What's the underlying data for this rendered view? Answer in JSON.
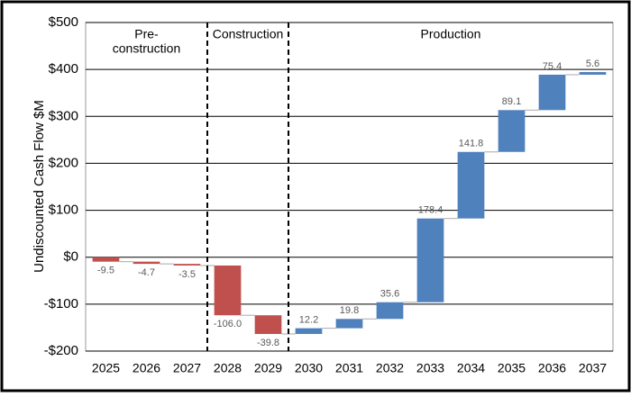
{
  "chart_data": {
    "type": "waterfall",
    "y_label": "Undiscounted Cash Flow $M",
    "categories": [
      "2025",
      "2026",
      "2027",
      "2028",
      "2029",
      "2030",
      "2031",
      "2032",
      "2033",
      "2034",
      "2035",
      "2036",
      "2037"
    ],
    "values": [
      -9.5,
      -4.7,
      -3.5,
      -106.0,
      -39.8,
      12.2,
      19.8,
      35.6,
      178.4,
      141.8,
      89.1,
      75.4,
      5.6
    ],
    "value_labels": [
      "-9.5",
      "-4.7",
      "-3.5",
      "-106.0",
      "-39.8",
      "12.2",
      "19.8",
      "35.6",
      "178.4",
      "141.8",
      "89.1",
      "75.4",
      "5.6"
    ],
    "negative_color": "#c0504d",
    "positive_color": "#4f81bd",
    "ylim": [
      -200,
      500
    ],
    "yticks": [
      {
        "value": -200,
        "label": "-$200"
      },
      {
        "value": -100,
        "label": "-$100"
      },
      {
        "value": 0,
        "label": "$0"
      },
      {
        "value": 100,
        "label": "$100"
      },
      {
        "value": 200,
        "label": "$200"
      },
      {
        "value": 300,
        "label": "$300"
      },
      {
        "value": 400,
        "label": "$400"
      },
      {
        "value": 500,
        "label": "$500"
      }
    ],
    "grid": true,
    "phases": [
      {
        "label": [
          "Pre-",
          "construction"
        ]
      },
      {
        "label": [
          "Construction"
        ]
      },
      {
        "label": [
          "Production"
        ]
      }
    ]
  }
}
